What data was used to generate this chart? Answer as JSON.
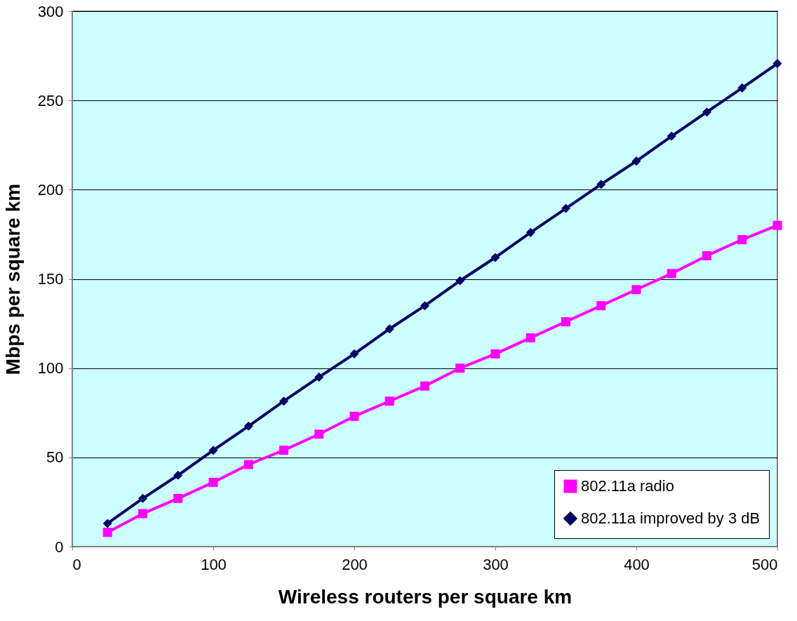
{
  "chart_data": {
    "type": "line",
    "xlabel": "Wireless routers per square km",
    "ylabel": "Mbps per square km",
    "x": [
      25,
      50,
      75,
      100,
      125,
      150,
      175,
      200,
      225,
      250,
      275,
      300,
      325,
      350,
      375,
      400,
      425,
      450,
      475,
      500
    ],
    "series": [
      {
        "name": "802.11a  radio",
        "color": "#ff00ff",
        "marker": "square",
        "values": [
          8,
          18.5,
          27,
          36,
          46,
          54,
          63,
          73,
          81.5,
          90,
          100,
          108,
          117,
          126,
          135,
          144,
          153,
          163,
          172,
          180
        ]
      },
      {
        "name": "802.11a improved by 3 dB",
        "color": "#000066",
        "marker": "diamond",
        "values": [
          13,
          27,
          40,
          54,
          67.5,
          81.5,
          95,
          108,
          122,
          135,
          149,
          162,
          176,
          189.5,
          203,
          216,
          230,
          243.5,
          257,
          270.7
        ]
      }
    ],
    "xlim": [
      0,
      500
    ],
    "xticks": [
      0,
      100,
      200,
      300,
      400,
      500
    ],
    "ylim": [
      0,
      300
    ],
    "yticks": [
      0,
      50,
      100,
      150,
      200,
      250,
      300
    ],
    "grid": "y",
    "legend": "bottom right",
    "line_style": "solid"
  }
}
